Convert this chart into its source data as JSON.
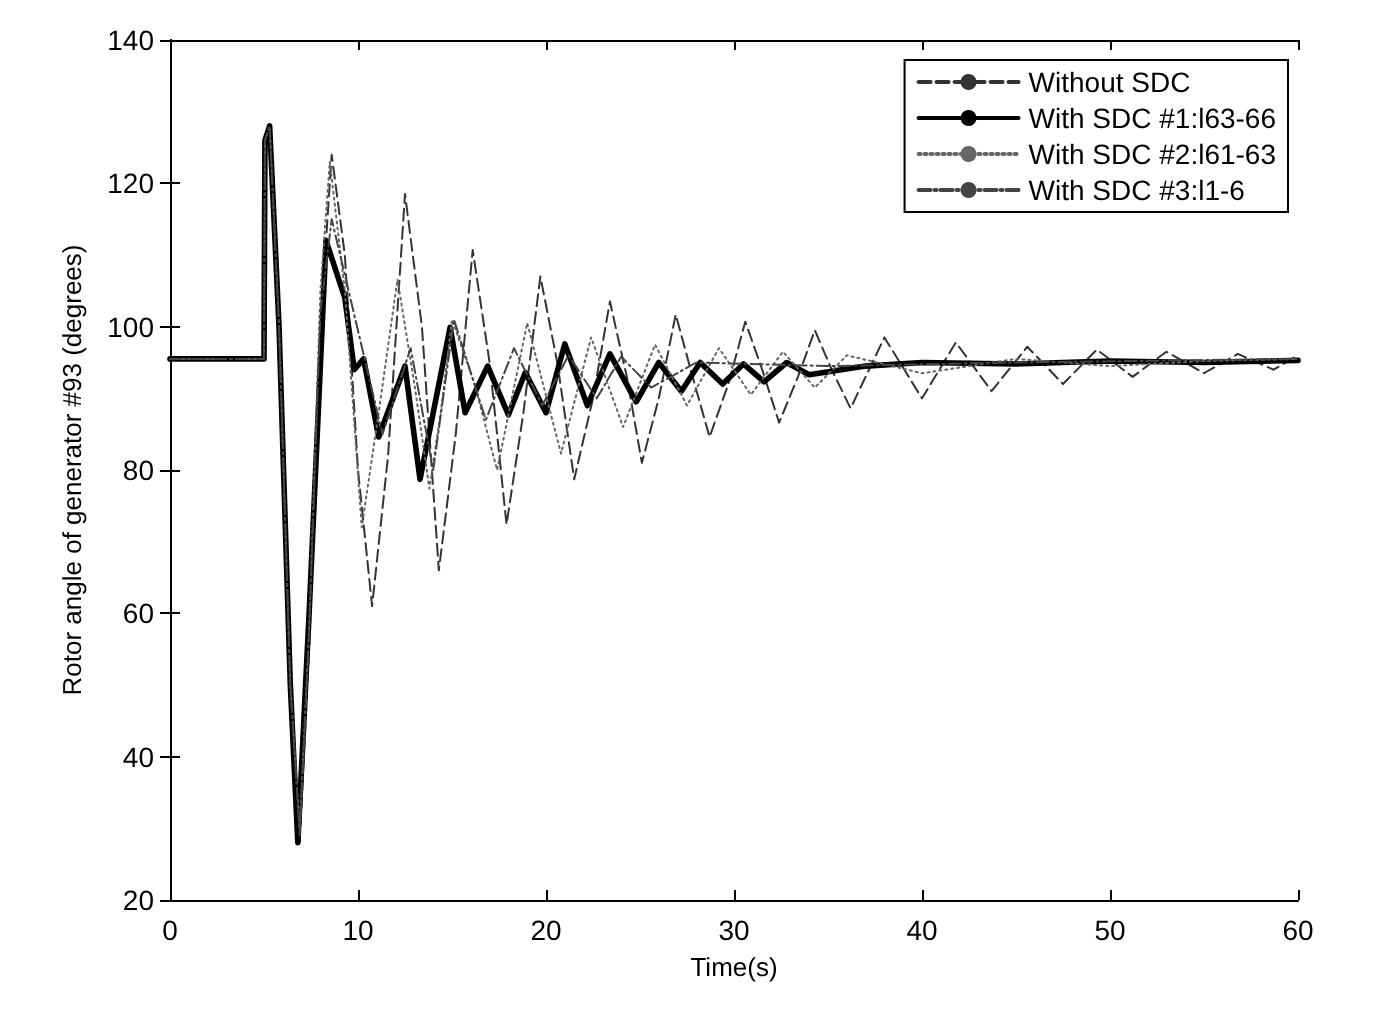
{
  "chart_data": {
    "type": "line",
    "xlabel": "Time(s)",
    "ylabel": "Rotor angle of generator #93 (degrees)",
    "xlim": [
      0,
      60
    ],
    "xticks": [
      0,
      10,
      20,
      30,
      40,
      50,
      60
    ],
    "ylim": [
      20,
      140
    ],
    "yticks": [
      20,
      40,
      60,
      80,
      100,
      120,
      140
    ],
    "grid": false,
    "legend": "top right",
    "series": [
      {
        "name": "Without SDC",
        "color": "#333333",
        "line_style": "dashed",
        "x": [
          0,
          5,
          5.05,
          5.3,
          5.8,
          6.4,
          6.9,
          7.4,
          8,
          8.6,
          9.3,
          10,
          10.75,
          11.6,
          12.5,
          13.4,
          14.3,
          15.2,
          16.1,
          17,
          17.9,
          18.8,
          19.7,
          20.6,
          21.5,
          22.5,
          23.4,
          24.3,
          25.1,
          26,
          26.9,
          27.8,
          28.7,
          29.7,
          30.6,
          31.5,
          32.4,
          33.4,
          34.3,
          35.2,
          36.2,
          38,
          40,
          41.8,
          43.7,
          45.6,
          47.5,
          49.3,
          51.2,
          53,
          55,
          56.8,
          58.7,
          60
        ],
        "values": [
          95.5,
          95.5,
          126,
          128,
          100,
          50,
          28,
          55,
          100,
          124,
          110,
          80,
          61,
          82,
          118.5,
          100,
          66,
          85,
          110.7,
          95,
          72.4,
          88,
          107,
          95,
          78.7,
          90,
          103.5,
          93,
          81,
          90,
          101.7,
          93,
          84.6,
          92,
          100.7,
          94,
          86.6,
          93,
          99.5,
          94,
          88.6,
          98.5,
          90,
          97.8,
          91,
          97.2,
          92,
          96.8,
          93,
          96.5,
          93.5,
          96.2,
          94,
          96
        ]
      },
      {
        "name": "With SDC #1:l63-66",
        "color": "#000000",
        "line_style": "solid",
        "x": [
          0,
          5,
          5.05,
          5.3,
          5.8,
          6.4,
          6.8,
          7.4,
          8.3,
          9.3,
          9.8,
          10.3,
          11.1,
          12.5,
          13.3,
          14.9,
          15.7,
          16.9,
          18,
          18.9,
          20,
          21,
          22.2,
          23.4,
          24.8,
          26,
          27.2,
          28.2,
          29.4,
          30.5,
          31.6,
          32.8,
          34,
          37,
          40,
          45,
          50,
          55,
          60
        ],
        "values": [
          95.5,
          95.5,
          126,
          128,
          100,
          50,
          28,
          60,
          112,
          104,
          94,
          95.5,
          84.6,
          94.5,
          78.7,
          99.9,
          88,
          94.5,
          87.7,
          93.6,
          88,
          97.6,
          89,
          96.2,
          89.5,
          95,
          91,
          95,
          92,
          94.8,
          92.3,
          95,
          93.3,
          94.5,
          95,
          94.8,
          95.2,
          95,
          95.3
        ]
      },
      {
        "name": "With SDC #2:l61-63",
        "color": "#666666",
        "line_style": "dotted",
        "x": [
          0,
          5,
          5.05,
          5.3,
          5.8,
          6.4,
          6.9,
          7.4,
          8,
          8.5,
          9.3,
          10.2,
          11.1,
          12.1,
          13,
          13.8,
          14.4,
          15,
          16.2,
          17.4,
          19,
          20.8,
          22.4,
          24.1,
          25.8,
          27.5,
          29.2,
          30.9,
          32.6,
          34.3,
          36,
          40,
          45,
          50,
          55,
          60
        ],
        "values": [
          95.5,
          95.5,
          126,
          128,
          100,
          50,
          30,
          58,
          105,
          123,
          105,
          72,
          88,
          106.6,
          92,
          77.4,
          88,
          101,
          92,
          80,
          100.5,
          82.3,
          98.5,
          86,
          97.5,
          89,
          97,
          90.5,
          96.5,
          91.5,
          96,
          93.5,
          95.5,
          94.5,
          95.2,
          95.5
        ]
      },
      {
        "name": "With SDC #3:l1-6",
        "color": "#444444",
        "line_style": "dashdot",
        "x": [
          0,
          5,
          5.05,
          5.3,
          5.8,
          6.4,
          6.9,
          7.4,
          8,
          8.6,
          9.5,
          11.3,
          12.8,
          14,
          15.1,
          16.8,
          18.3,
          19.8,
          21.2,
          22.7,
          24,
          25.6,
          28,
          35,
          45,
          60
        ],
        "values": [
          95.5,
          95.5,
          126,
          128,
          100,
          50,
          29,
          57,
          102,
          115,
          105,
          85,
          97,
          80,
          101,
          87,
          97,
          89,
          96,
          90,
          95.8,
          91.5,
          95,
          94.5,
          95,
          95.5
        ]
      }
    ]
  }
}
